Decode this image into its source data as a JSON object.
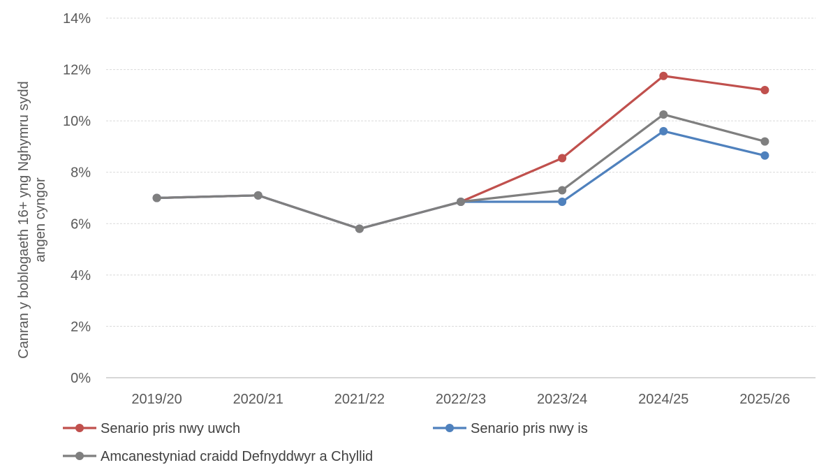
{
  "chart_data": {
    "type": "line",
    "title": "",
    "xlabel": "",
    "ylabel": "Canran y boblogaeth 16+ yng Nghymru sydd angen cyngor",
    "categories": [
      "2019/20",
      "2020/21",
      "2021/22",
      "2022/23",
      "2023/24",
      "2024/25",
      "2025/26"
    ],
    "y_unit": "%",
    "ylim": [
      0,
      14
    ],
    "yticks": [
      0,
      2,
      4,
      6,
      8,
      10,
      12,
      14
    ],
    "ytick_labels": [
      "0%",
      "2%",
      "4%",
      "6%",
      "8%",
      "10%",
      "12%",
      "14%"
    ],
    "grid": true,
    "legend_position": "bottom",
    "series": [
      {
        "name": "Senario pris nwy uwch",
        "color": "#c0504d",
        "values": [
          7.0,
          7.1,
          5.8,
          6.85,
          8.55,
          11.75,
          11.2
        ]
      },
      {
        "name": "Senario pris nwy is",
        "color": "#4f81bd",
        "values": [
          7.0,
          7.1,
          5.8,
          6.85,
          6.85,
          9.6,
          8.65
        ]
      },
      {
        "name": "Amcanestyniad craidd Defnyddwyr a Chyllid",
        "color": "#7f7f7f",
        "values": [
          7.0,
          7.1,
          5.8,
          6.85,
          7.3,
          10.25,
          9.2
        ]
      }
    ]
  }
}
